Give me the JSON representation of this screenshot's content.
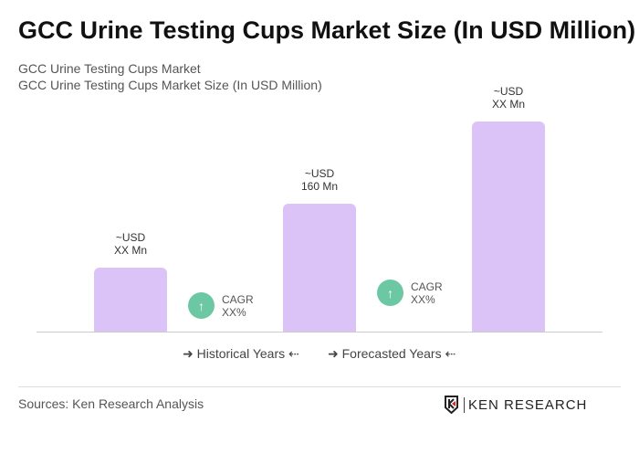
{
  "title": "GCC Urine Testing Cups Market Size (In USD Million)",
  "subtitle1": "GCC Urine Testing Cups Market",
  "subtitle2": "GCC Urine Testing Cups Market Size (In USD Million)",
  "chart_data": {
    "type": "bar",
    "categories": [
      "",
      "",
      ""
    ],
    "values": [
      80,
      160,
      263
    ],
    "data_labels": [
      [
        "~USD",
        "XX Mn"
      ],
      [
        "~USD",
        "160 Mn"
      ],
      [
        "~USD",
        "XX Mn"
      ]
    ],
    "bar_color": "#dcc3f7",
    "ylim": [
      0,
      270
    ],
    "grid": false,
    "annotations": [
      {
        "label": "CAGR",
        "value": "XX%"
      },
      {
        "label": "CAGR",
        "value": "XX%"
      }
    ],
    "annotation_color": "#6cc7a3",
    "legend": [
      "Historical Years",
      "Forecasted Years"
    ]
  },
  "legend_icons": {
    "left": "arrow-right-icon",
    "right": "arrow-left-icon"
  },
  "source": "Sources: Ken Research Analysis",
  "logo": "KEN RESEARCH"
}
